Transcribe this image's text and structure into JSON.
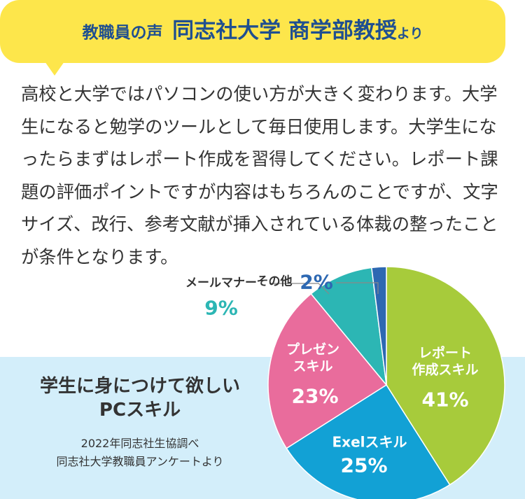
{
  "header": {
    "prefix": "教職員の声",
    "title": "同志社大学 商学部教授",
    "suffix": "より"
  },
  "body": "高校と大学ではパソコンの使い方が大きく変わります。大学生になると勉学のツールとして毎日使用します。大学生になったらまずはレポート作成を習得してください。レポート課題の評価ポイントですが内容はもちろんのことですが、文字サイズ、改行、参考文献が挿入されている体裁の整ったことが条件となります。",
  "chart_data": {
    "type": "pie",
    "title": "学生に身につけて欲しい\nPCスキル",
    "source": "2022年同志社生協調べ\n同志社大学教職員アンケートより",
    "categories": [
      "レポート\n作成スキル",
      "Exelスキル",
      "プレゼン\nスキル",
      "メールマナー",
      "その他"
    ],
    "values": [
      41,
      25,
      23,
      9,
      2
    ],
    "value_labels": [
      "41%",
      "25%",
      "23%",
      "9%",
      "2%"
    ],
    "colors": [
      "#a7cb3b",
      "#12a1d5",
      "#e96c9c",
      "#2cb6b4",
      "#2d68b2"
    ]
  }
}
